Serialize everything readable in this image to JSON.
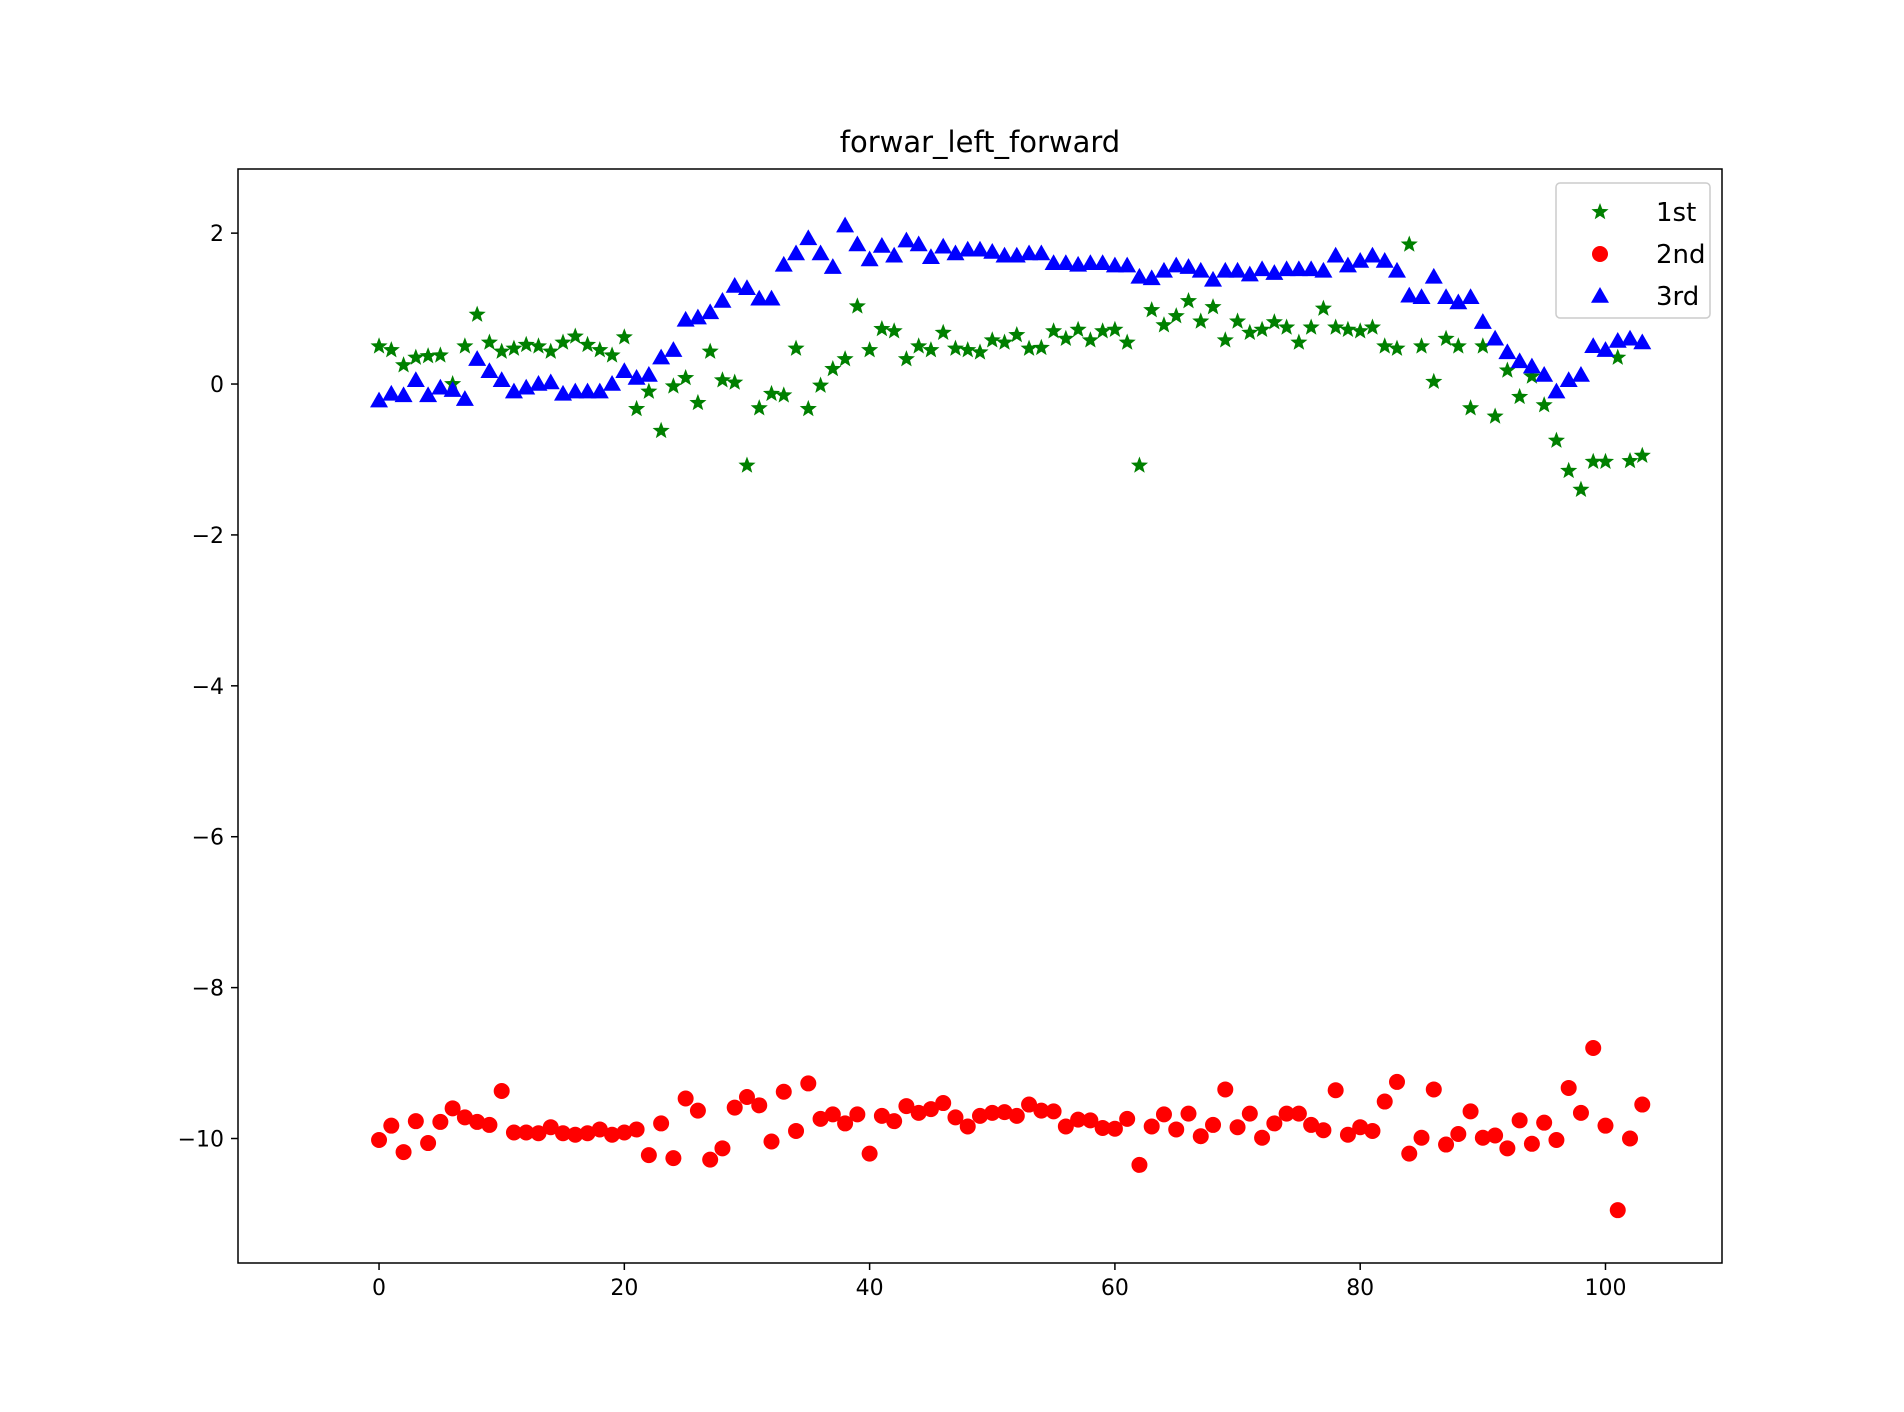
{
  "chart_data": {
    "type": "scatter",
    "title": "forwar_left_forward",
    "xlabel": "",
    "ylabel": "",
    "xlim": [
      -11.5,
      109.5
    ],
    "ylim": [
      -11.65,
      2.85
    ],
    "xticks": [
      0,
      20,
      40,
      60,
      80,
      100
    ],
    "xtick_labels": [
      "0",
      "20",
      "40",
      "60",
      "80",
      "100"
    ],
    "yticks": [
      2,
      0,
      -2,
      -4,
      -6,
      -8,
      -10
    ],
    "ytick_labels": [
      "2",
      "0",
      "−2",
      "−4",
      "−6",
      "−8",
      "−10"
    ],
    "grid": false,
    "legend_position": "top-right",
    "x": [
      0,
      1,
      2,
      3,
      4,
      5,
      6,
      7,
      8,
      9,
      10,
      11,
      12,
      13,
      14,
      15,
      16,
      17,
      18,
      19,
      20,
      21,
      22,
      23,
      24,
      25,
      26,
      27,
      28,
      29,
      30,
      31,
      32,
      33,
      34,
      35,
      36,
      37,
      38,
      39,
      40,
      41,
      42,
      43,
      44,
      45,
      46,
      47,
      48,
      49,
      50,
      51,
      52,
      53,
      54,
      55,
      56,
      57,
      58,
      59,
      60,
      61,
      62,
      63,
      64,
      65,
      66,
      67,
      68,
      69,
      70,
      71,
      72,
      73,
      74,
      75,
      76,
      77,
      78,
      79,
      80,
      81,
      82,
      83,
      84,
      85,
      86,
      87,
      88,
      89,
      90,
      91,
      92,
      93,
      94,
      95,
      96,
      97,
      98,
      99,
      100,
      101,
      102,
      103
    ],
    "series": [
      {
        "name": "1st",
        "marker": "star",
        "color": "#008000",
        "values": [
          0.5,
          0.45,
          0.25,
          0.35,
          0.37,
          0.38,
          0.0,
          0.5,
          0.92,
          0.55,
          0.43,
          0.47,
          0.52,
          0.5,
          0.43,
          0.55,
          0.63,
          0.52,
          0.45,
          0.38,
          0.62,
          -0.33,
          -0.1,
          -0.62,
          -0.03,
          0.08,
          -0.25,
          0.43,
          0.05,
          0.02,
          -1.08,
          -0.32,
          -0.13,
          -0.15,
          0.47,
          -0.33,
          -0.02,
          0.2,
          0.33,
          1.03,
          0.45,
          0.73,
          0.7,
          0.33,
          0.5,
          0.45,
          0.68,
          0.47,
          0.45,
          0.42,
          0.58,
          0.55,
          0.65,
          0.47,
          0.48,
          0.7,
          0.6,
          0.72,
          0.58,
          0.7,
          0.72,
          0.55,
          -1.08,
          0.98,
          0.78,
          0.9,
          1.1,
          0.83,
          1.02,
          0.58,
          0.83,
          0.68,
          0.72,
          0.82,
          0.75,
          0.55,
          0.75,
          1.0,
          0.75,
          0.72,
          0.7,
          0.75,
          0.5,
          0.47,
          1.85,
          0.5,
          0.03,
          0.6,
          0.5,
          -0.32,
          0.5,
          -0.43,
          0.18,
          -0.17,
          0.1,
          -0.28,
          -0.75,
          -1.15,
          -1.4,
          -1.03,
          -1.03,
          0.35,
          -1.02,
          -0.95
        ]
      },
      {
        "name": "2nd",
        "marker": "circle",
        "color": "#ff0000",
        "values": [
          -10.02,
          -9.83,
          -10.18,
          -9.77,
          -10.06,
          -9.78,
          -9.6,
          -9.72,
          -9.78,
          -9.82,
          -9.37,
          -9.92,
          -9.92,
          -9.93,
          -9.85,
          -9.93,
          -9.95,
          -9.93,
          -9.88,
          -9.95,
          -9.92,
          -9.88,
          -10.22,
          -9.8,
          -10.26,
          -9.47,
          -9.63,
          -10.28,
          -10.13,
          -9.59,
          -9.45,
          -9.56,
          -10.04,
          -9.38,
          -9.9,
          -9.27,
          -9.74,
          -9.68,
          -9.8,
          -9.68,
          -10.2,
          -9.7,
          -9.77,
          -9.57,
          -9.66,
          -9.61,
          -9.53,
          -9.72,
          -9.84,
          -9.7,
          -9.66,
          -9.65,
          -9.7,
          -9.55,
          -9.63,
          -9.64,
          -9.84,
          -9.75,
          -9.76,
          -9.86,
          -9.87,
          -9.74,
          -10.35,
          -9.84,
          -9.68,
          -9.88,
          -9.67,
          -9.97,
          -9.82,
          -9.35,
          -9.85,
          -9.67,
          -9.99,
          -9.8,
          -9.67,
          -9.67,
          -9.82,
          -9.89,
          -9.36,
          -9.95,
          -9.85,
          -9.9,
          -9.51,
          -9.25,
          -10.2,
          -9.99,
          -9.35,
          -10.08,
          -9.94,
          -9.64,
          -9.99,
          -9.96,
          -10.13,
          -9.76,
          -10.07,
          -9.79,
          -10.02,
          -9.33,
          -9.66,
          -8.8,
          -9.83,
          -10.95,
          -10.0,
          -9.55
        ]
      },
      {
        "name": "3rd",
        "marker": "triangle-up",
        "color": "#0000ff",
        "values": [
          -0.22,
          -0.13,
          -0.15,
          0.05,
          -0.15,
          -0.05,
          -0.08,
          -0.2,
          0.33,
          0.17,
          0.05,
          -0.1,
          -0.05,
          0.0,
          0.02,
          -0.13,
          -0.1,
          -0.1,
          -0.1,
          0.0,
          0.17,
          0.08,
          0.12,
          0.35,
          0.45,
          0.85,
          0.88,
          0.95,
          1.1,
          1.3,
          1.27,
          1.13,
          1.13,
          1.58,
          1.73,
          1.93,
          1.73,
          1.55,
          2.1,
          1.85,
          1.65,
          1.83,
          1.7,
          1.9,
          1.85,
          1.68,
          1.82,
          1.73,
          1.78,
          1.78,
          1.75,
          1.7,
          1.7,
          1.73,
          1.73,
          1.6,
          1.6,
          1.58,
          1.6,
          1.6,
          1.57,
          1.57,
          1.42,
          1.4,
          1.5,
          1.57,
          1.55,
          1.5,
          1.38,
          1.5,
          1.5,
          1.45,
          1.52,
          1.47,
          1.52,
          1.52,
          1.52,
          1.5,
          1.7,
          1.57,
          1.63,
          1.7,
          1.63,
          1.5,
          1.17,
          1.15,
          1.42,
          1.15,
          1.08,
          1.15,
          0.82,
          0.6,
          0.42,
          0.3,
          0.23,
          0.12,
          -0.1,
          0.05,
          0.12,
          0.5,
          0.45,
          0.57,
          0.6,
          0.55
        ]
      }
    ]
  }
}
